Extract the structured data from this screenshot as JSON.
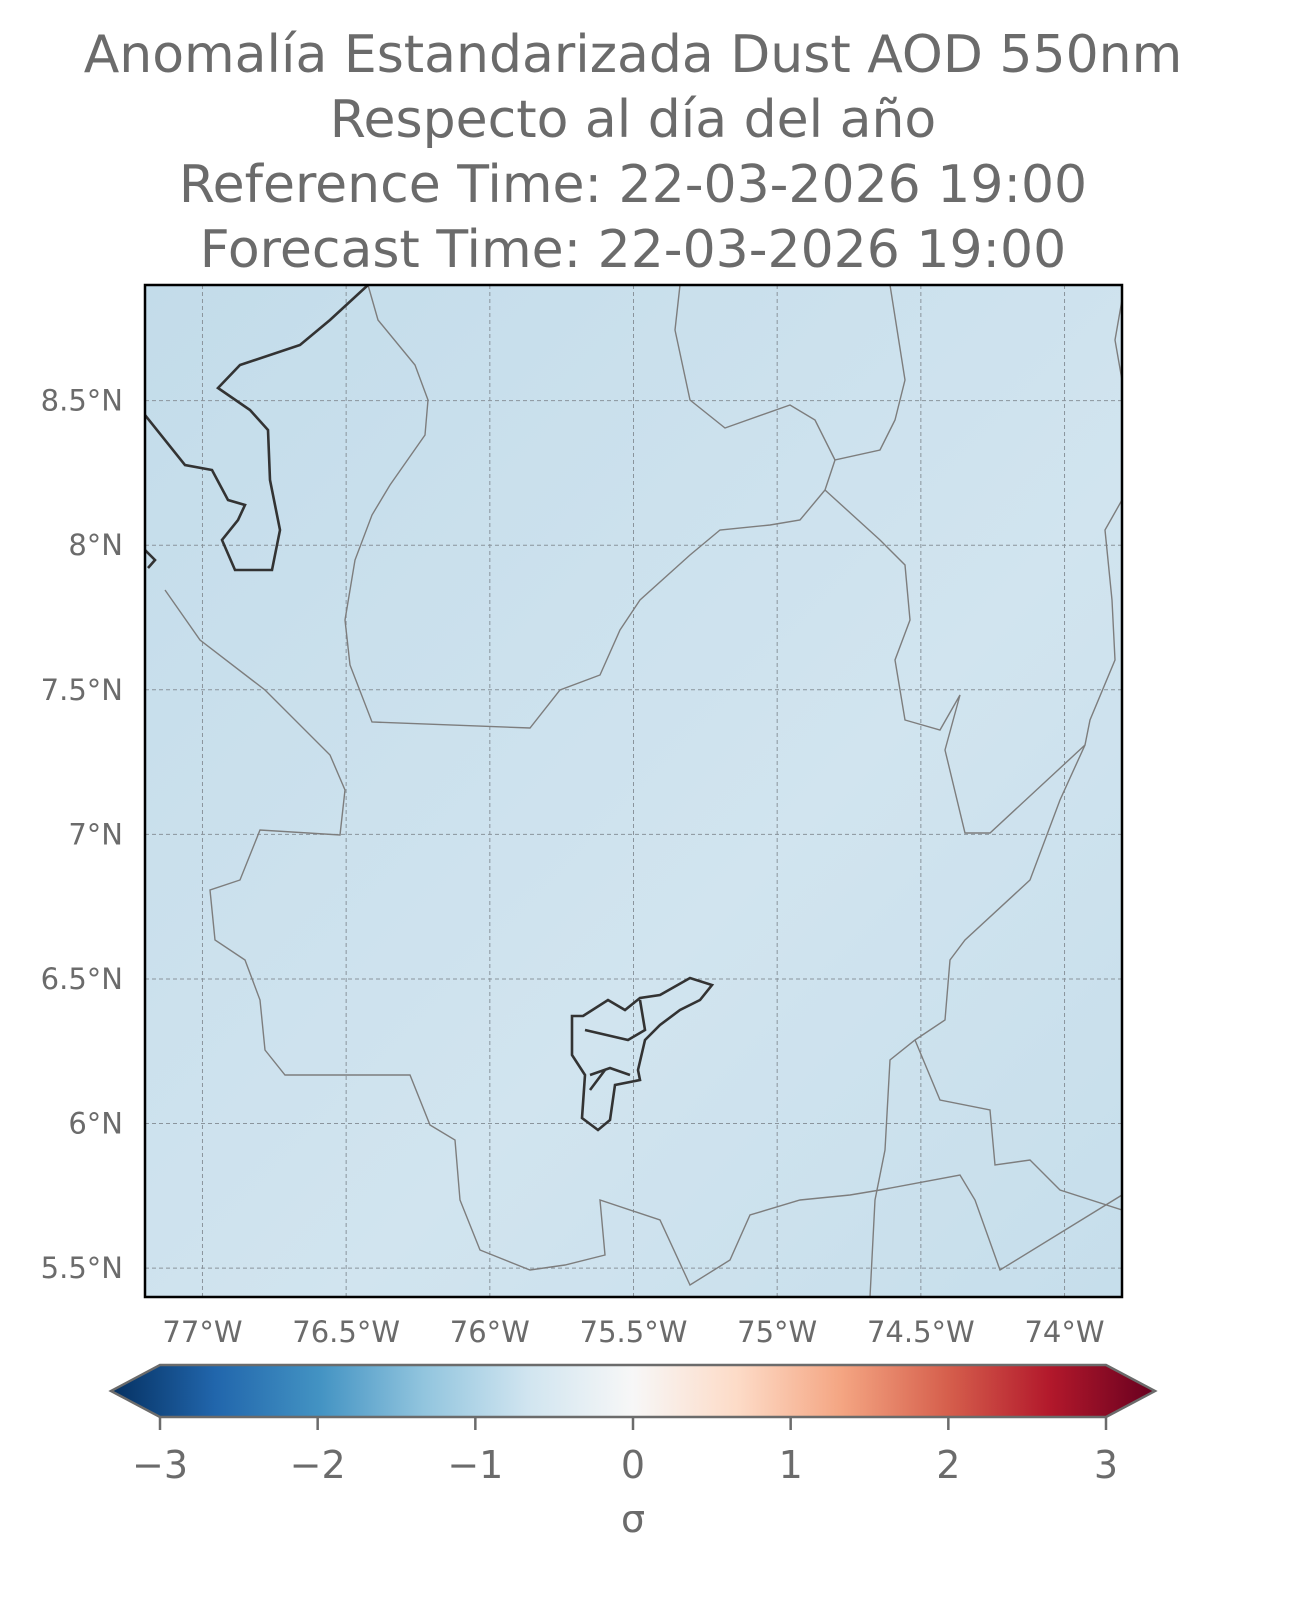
{
  "map": {
    "title": [
      "Anomalía Estandarizada Dust AOD 550nm",
      "Respecto al día del año",
      "Reference Time: 22-03-2026 19:00",
      "Forecast Time: 22-03-2026 19:00"
    ],
    "xlim": [
      -77.2,
      -73.8
    ],
    "ylim": [
      5.4,
      8.9
    ],
    "xticks": [
      {
        "value": -77,
        "label": "77°W"
      },
      {
        "value": -76.5,
        "label": "76.5°W"
      },
      {
        "value": -76,
        "label": "76°W"
      },
      {
        "value": -75.5,
        "label": "75.5°W"
      },
      {
        "value": -75,
        "label": "75°W"
      },
      {
        "value": -74.5,
        "label": "74.5°W"
      },
      {
        "value": -74,
        "label": "74°W"
      }
    ],
    "yticks": [
      {
        "value": 8.5,
        "label": "8.5°N"
      },
      {
        "value": 8,
        "label": "8°N"
      },
      {
        "value": 7.5,
        "label": "7.5°N"
      },
      {
        "value": 7,
        "label": "7°N"
      },
      {
        "value": 6.5,
        "label": "6.5°N"
      },
      {
        "value": 6,
        "label": "6°N"
      },
      {
        "value": 5.5,
        "label": "5.5°N"
      }
    ],
    "grid": true,
    "colorbar": {
      "clim": [
        -3,
        3
      ],
      "ticks": [
        {
          "value": -3,
          "label": "−3"
        },
        {
          "value": -2,
          "label": "−2"
        },
        {
          "value": -1,
          "label": "−1"
        },
        0,
        1,
        2,
        3
      ],
      "label": "σ"
    }
  }
}
